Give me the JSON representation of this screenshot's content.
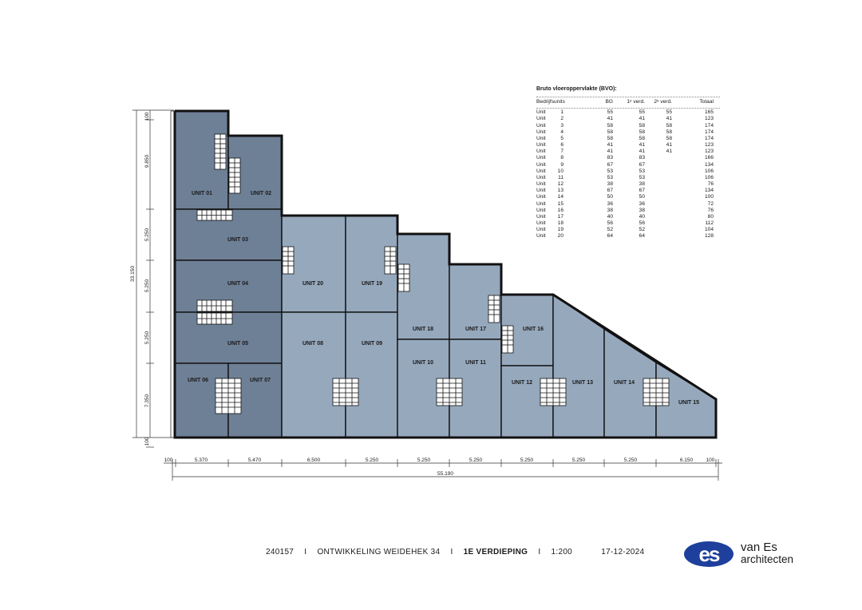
{
  "units": {
    "u01": "UNIT 01",
    "u02": "UNIT 02",
    "u03": "UNIT 03",
    "u04": "UNIT 04",
    "u05": "UNIT 05",
    "u06": "UNIT 06",
    "u07": "UNIT 07",
    "u08": "UNIT 08",
    "u09": "UNIT 09",
    "u10": "UNIT 10",
    "u11": "UNIT 11",
    "u12": "UNIT 12",
    "u13": "UNIT 13",
    "u14": "UNIT 14",
    "u15": "UNIT 15",
    "u16": "UNIT 16",
    "u17": "UNIT 17",
    "u18": "UNIT 18",
    "u19": "UNIT 19",
    "u20": "UNIT 20"
  },
  "dims": {
    "bottom": [
      "100",
      "5.370",
      "5.470",
      "6.500",
      "5.250",
      "5.250",
      "5.250",
      "5.250",
      "5.250",
      "5.250",
      "6.150",
      "100"
    ],
    "total": "55.190",
    "left_total": "33.150",
    "left": [
      "100",
      "9.850",
      "5.250",
      "5.250",
      "5.250",
      "7.350",
      "100"
    ]
  },
  "colors": {
    "dark_unit": "#6e8096",
    "light_unit": "#96a8bc",
    "wall": "#111111"
  },
  "bvo_table": {
    "title": "Bruto vloeroppervlakte (BVO):",
    "headers": [
      "Bedrijfsunits",
      "BG",
      "1ᵉ verd.",
      "2ᵉ verd.",
      "Totaal"
    ],
    "rows": [
      [
        "Unit",
        "1",
        "55",
        "55",
        "55",
        "165"
      ],
      [
        "Unit",
        "2",
        "41",
        "41",
        "41",
        "123"
      ],
      [
        "Unit",
        "3",
        "58",
        "58",
        "58",
        "174"
      ],
      [
        "Unit",
        "4",
        "58",
        "58",
        "58",
        "174"
      ],
      [
        "Unit",
        "5",
        "58",
        "58",
        "58",
        "174"
      ],
      [
        "Unit",
        "6",
        "41",
        "41",
        "41",
        "123"
      ],
      [
        "Unit",
        "7",
        "41",
        "41",
        "41",
        "123"
      ],
      [
        "Unit",
        "8",
        "83",
        "83",
        "",
        "166"
      ],
      [
        "Unit",
        "9",
        "67",
        "67",
        "",
        "134"
      ],
      [
        "Unit",
        "10",
        "53",
        "53",
        "",
        "106"
      ],
      [
        "Unit",
        "11",
        "53",
        "53",
        "",
        "106"
      ],
      [
        "Unit",
        "12",
        "38",
        "38",
        "",
        "76"
      ],
      [
        "Unit",
        "13",
        "67",
        "67",
        "",
        "134"
      ],
      [
        "Unit",
        "14",
        "50",
        "50",
        "",
        "100"
      ],
      [
        "Unit",
        "15",
        "36",
        "36",
        "",
        "72"
      ],
      [
        "Unit",
        "16",
        "38",
        "38",
        "",
        "76"
      ],
      [
        "Unit",
        "17",
        "40",
        "40",
        "",
        "80"
      ],
      [
        "Unit",
        "18",
        "56",
        "56",
        "",
        "112"
      ],
      [
        "Unit",
        "19",
        "52",
        "52",
        "",
        "104"
      ],
      [
        "Unit",
        "20",
        "64",
        "64",
        "",
        "128"
      ]
    ]
  },
  "footer": {
    "project_no": "240157",
    "project_name": "ONTWIKKELING WEIDEHEK 34",
    "floor": "1E VERDIEPING",
    "scale": "1:200",
    "date": "17-12-2024",
    "separator": "I"
  },
  "logo": {
    "mark": "es",
    "line1": "van Es",
    "line2": "architecten"
  }
}
